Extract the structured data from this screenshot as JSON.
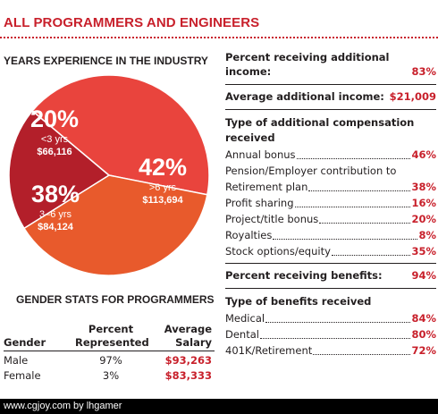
{
  "title": "ALL PROGRAMMERS AND ENGINEERS",
  "chart_data": {
    "type": "pie",
    "title": "YEARS EXPERIENCE IN THE INDUSTRY",
    "slices": [
      {
        "percent_label": "20%",
        "range": "<3 yrs",
        "salary": "$66,116",
        "value": 20,
        "color": "#b31f2a"
      },
      {
        "percent_label": "42%",
        "range": ">6 yrs",
        "salary": "$113,694",
        "value": 42,
        "color": "#e9443d"
      },
      {
        "percent_label": "38%",
        "range": "3–6 yrs",
        "salary": "$84,124",
        "value": 38,
        "color": "#e85a2c"
      }
    ]
  },
  "gender": {
    "title": "GENDER STATS FOR PROGRAMMERS",
    "headers": {
      "gender": "Gender",
      "percent_1": "Percent",
      "percent_2": "Represented",
      "salary_1": "Average",
      "salary_2": "Salary"
    },
    "rows": [
      {
        "gender": "Male",
        "percent": "97%",
        "salary": "$93,263"
      },
      {
        "gender": "Female",
        "percent": "3%",
        "salary": "$83,333"
      }
    ]
  },
  "additional_income": {
    "label_1": "Percent receiving additional",
    "label_2": "income:",
    "value": "83%"
  },
  "average_additional_income": {
    "label": "Average additional income:",
    "value": "$21,009"
  },
  "compensation": {
    "title_1": "Type of additional compensation",
    "title_2": "received",
    "items": [
      {
        "label": "Annual bonus",
        "value": "46%"
      },
      {
        "label": "Pension/Employer contribution to",
        "value": ""
      },
      {
        "label": "Retirement plan",
        "value": "38%"
      },
      {
        "label": "Profit sharing",
        "value": "16%"
      },
      {
        "label": "Project/title bonus",
        "value": "20%"
      },
      {
        "label": "Royalties",
        "value": "8%"
      },
      {
        "label": "Stock options/equity",
        "value": "35%"
      }
    ]
  },
  "benefits": {
    "label": "Percent receiving benefits:",
    "value": "94%"
  },
  "benefit_types": {
    "title": "Type of benefits received",
    "items": [
      {
        "label": "Medical",
        "value": "84%"
      },
      {
        "label": "Dental",
        "value": "80%"
      },
      {
        "label": "401K/Retirement",
        "value": "72%"
      }
    ]
  },
  "footer": "www.cgjoy.com by lhgamer"
}
